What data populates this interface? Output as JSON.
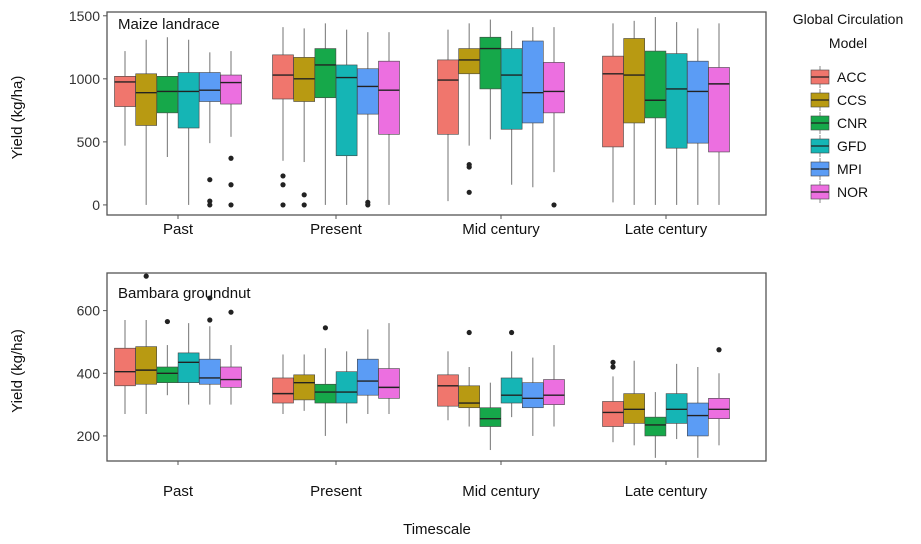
{
  "chart_data": [
    {
      "type": "box",
      "title": "Maize landrace",
      "xlabel": "",
      "ylabel": "Yield (kg/ha)",
      "ylim": [
        -80,
        1530
      ],
      "yticks": [
        0,
        500,
        1000,
        1500
      ],
      "categories": [
        "Past",
        "Present",
        "Mid century",
        "Late century"
      ],
      "series": [
        {
          "name": "ACC",
          "boxes": [
            {
              "min": 470,
              "q1": 780,
              "median": 975,
              "q3": 1020,
              "max": 1220,
              "outliers": []
            },
            {
              "min": 350,
              "q1": 840,
              "median": 1030,
              "q3": 1190,
              "max": 1410,
              "outliers": [
                230,
                160,
                0
              ]
            },
            {
              "min": 30,
              "q1": 560,
              "median": 990,
              "q3": 1150,
              "max": 1390,
              "outliers": []
            },
            {
              "min": 20,
              "q1": 460,
              "median": 1040,
              "q3": 1180,
              "max": 1440,
              "outliers": []
            }
          ]
        },
        {
          "name": "CCS",
          "boxes": [
            {
              "min": 0,
              "q1": 630,
              "median": 890,
              "q3": 1040,
              "max": 1310,
              "outliers": []
            },
            {
              "min": 340,
              "q1": 820,
              "median": 1000,
              "q3": 1170,
              "max": 1400,
              "outliers": [
                80,
                0
              ]
            },
            {
              "min": 470,
              "q1": 1040,
              "median": 1150,
              "q3": 1240,
              "max": 1440,
              "outliers": [
                320,
                300,
                100
              ]
            },
            {
              "min": 0,
              "q1": 650,
              "median": 1030,
              "q3": 1320,
              "max": 1460,
              "outliers": []
            }
          ]
        },
        {
          "name": "CNR",
          "boxes": [
            {
              "min": 380,
              "q1": 730,
              "median": 900,
              "q3": 1020,
              "max": 1330,
              "outliers": []
            },
            {
              "min": 0,
              "q1": 850,
              "median": 1110,
              "q3": 1240,
              "max": 1440,
              "outliers": []
            },
            {
              "min": 520,
              "q1": 920,
              "median": 1240,
              "q3": 1330,
              "max": 1470,
              "outliers": []
            },
            {
              "min": 0,
              "q1": 690,
              "median": 830,
              "q3": 1220,
              "max": 1490,
              "outliers": []
            }
          ]
        },
        {
          "name": "GFD",
          "boxes": [
            {
              "min": 0,
              "q1": 610,
              "median": 900,
              "q3": 1050,
              "max": 1310,
              "outliers": []
            },
            {
              "min": 0,
              "q1": 390,
              "median": 1010,
              "q3": 1110,
              "max": 1390,
              "outliers": []
            },
            {
              "min": 160,
              "q1": 600,
              "median": 1030,
              "q3": 1240,
              "max": 1380,
              "outliers": []
            },
            {
              "min": 0,
              "q1": 450,
              "median": 920,
              "q3": 1200,
              "max": 1450,
              "outliers": []
            }
          ]
        },
        {
          "name": "MPI",
          "boxes": [
            {
              "min": 490,
              "q1": 820,
              "median": 910,
              "q3": 1050,
              "max": 1210,
              "outliers": [
                200,
                30,
                0
              ]
            },
            {
              "min": 0,
              "q1": 720,
              "median": 940,
              "q3": 1080,
              "max": 1370,
              "outliers": [
                20,
                0
              ]
            },
            {
              "min": 140,
              "q1": 650,
              "median": 890,
              "q3": 1300,
              "max": 1410,
              "outliers": []
            },
            {
              "min": 0,
              "q1": 490,
              "median": 900,
              "q3": 1140,
              "max": 1400,
              "outliers": []
            }
          ]
        },
        {
          "name": "NOR",
          "boxes": [
            {
              "min": 540,
              "q1": 800,
              "median": 970,
              "q3": 1030,
              "max": 1220,
              "outliers": [
                370,
                160,
                0
              ]
            },
            {
              "min": 0,
              "q1": 560,
              "median": 910,
              "q3": 1140,
              "max": 1370,
              "outliers": []
            },
            {
              "min": 260,
              "q1": 730,
              "median": 900,
              "q3": 1130,
              "max": 1410,
              "outliers": [
                0
              ]
            },
            {
              "min": 0,
              "q1": 420,
              "median": 960,
              "q3": 1090,
              "max": 1440,
              "outliers": []
            }
          ]
        }
      ]
    },
    {
      "type": "box",
      "title": "Bambara groundnut",
      "xlabel": "",
      "ylabel": "Yield (kg/ha)",
      "ylim": [
        120,
        720
      ],
      "yticks": [
        200,
        400,
        600
      ],
      "categories": [
        "Past",
        "Present",
        "Mid century",
        "Late century"
      ],
      "series": [
        {
          "name": "ACC",
          "boxes": [
            {
              "min": 270,
              "q1": 360,
              "median": 405,
              "q3": 480,
              "max": 570,
              "outliers": []
            },
            {
              "min": 270,
              "q1": 305,
              "median": 335,
              "q3": 385,
              "max": 460,
              "outliers": []
            },
            {
              "min": 250,
              "q1": 295,
              "median": 360,
              "q3": 395,
              "max": 470,
              "outliers": []
            },
            {
              "min": 180,
              "q1": 230,
              "median": 275,
              "q3": 310,
              "max": 390,
              "outliers": [
                435,
                420
              ]
            }
          ]
        },
        {
          "name": "CCS",
          "boxes": [
            {
              "min": 270,
              "q1": 365,
              "median": 410,
              "q3": 485,
              "max": 570,
              "outliers": [
                710
              ]
            },
            {
              "min": 280,
              "q1": 315,
              "median": 370,
              "q3": 395,
              "max": 460,
              "outliers": []
            },
            {
              "min": 230,
              "q1": 290,
              "median": 305,
              "q3": 360,
              "max": 420,
              "outliers": [
                530
              ]
            },
            {
              "min": 170,
              "q1": 240,
              "median": 285,
              "q3": 335,
              "max": 440,
              "outliers": []
            }
          ]
        },
        {
          "name": "CNR",
          "boxes": [
            {
              "min": 330,
              "q1": 370,
              "median": 400,
              "q3": 420,
              "max": 490,
              "outliers": [
                565
              ]
            },
            {
              "min": 200,
              "q1": 305,
              "median": 340,
              "q3": 365,
              "max": 480,
              "outliers": [
                545
              ]
            },
            {
              "min": 155,
              "q1": 230,
              "median": 255,
              "q3": 290,
              "max": 370,
              "outliers": []
            },
            {
              "min": 130,
              "q1": 200,
              "median": 235,
              "q3": 260,
              "max": 340,
              "outliers": []
            }
          ]
        },
        {
          "name": "GFD",
          "boxes": [
            {
              "min": 300,
              "q1": 370,
              "median": 435,
              "q3": 465,
              "max": 560,
              "outliers": []
            },
            {
              "min": 240,
              "q1": 305,
              "median": 340,
              "q3": 405,
              "max": 470,
              "outliers": []
            },
            {
              "min": 260,
              "q1": 305,
              "median": 330,
              "q3": 385,
              "max": 470,
              "outliers": [
                530
              ]
            },
            {
              "min": 190,
              "q1": 240,
              "median": 285,
              "q3": 335,
              "max": 430,
              "outliers": []
            }
          ]
        },
        {
          "name": "MPI",
          "boxes": [
            {
              "min": 300,
              "q1": 365,
              "median": 385,
              "q3": 445,
              "max": 550,
              "outliers": [
                640,
                570
              ]
            },
            {
              "min": 270,
              "q1": 330,
              "median": 375,
              "q3": 445,
              "max": 540,
              "outliers": []
            },
            {
              "min": 200,
              "q1": 290,
              "median": 320,
              "q3": 370,
              "max": 450,
              "outliers": []
            },
            {
              "min": 130,
              "q1": 200,
              "median": 265,
              "q3": 305,
              "max": 420,
              "outliers": []
            }
          ]
        },
        {
          "name": "NOR",
          "boxes": [
            {
              "min": 300,
              "q1": 355,
              "median": 380,
              "q3": 420,
              "max": 490,
              "outliers": [
                595
              ]
            },
            {
              "min": 270,
              "q1": 320,
              "median": 355,
              "q3": 415,
              "max": 560,
              "outliers": []
            },
            {
              "min": 230,
              "q1": 300,
              "median": 330,
              "q3": 380,
              "max": 490,
              "outliers": []
            },
            {
              "min": 170,
              "q1": 255,
              "median": 285,
              "q3": 320,
              "max": 400,
              "outliers": [
                475
              ]
            }
          ]
        }
      ]
    }
  ],
  "shared": {
    "xlabel": "Timescale",
    "legend": {
      "title_line1": "Global Circulation",
      "title_line2": "Model",
      "placement": "right"
    }
  },
  "colors": {
    "ACC": "#f0766d",
    "CCS": "#b89a12",
    "CNR": "#16a84a",
    "GFD": "#15b5b5",
    "MPI": "#5b9cf5",
    "NOR": "#ec6fe0",
    "whisker": "#8a8a8a",
    "frame": "#555555",
    "median": "#222222"
  }
}
